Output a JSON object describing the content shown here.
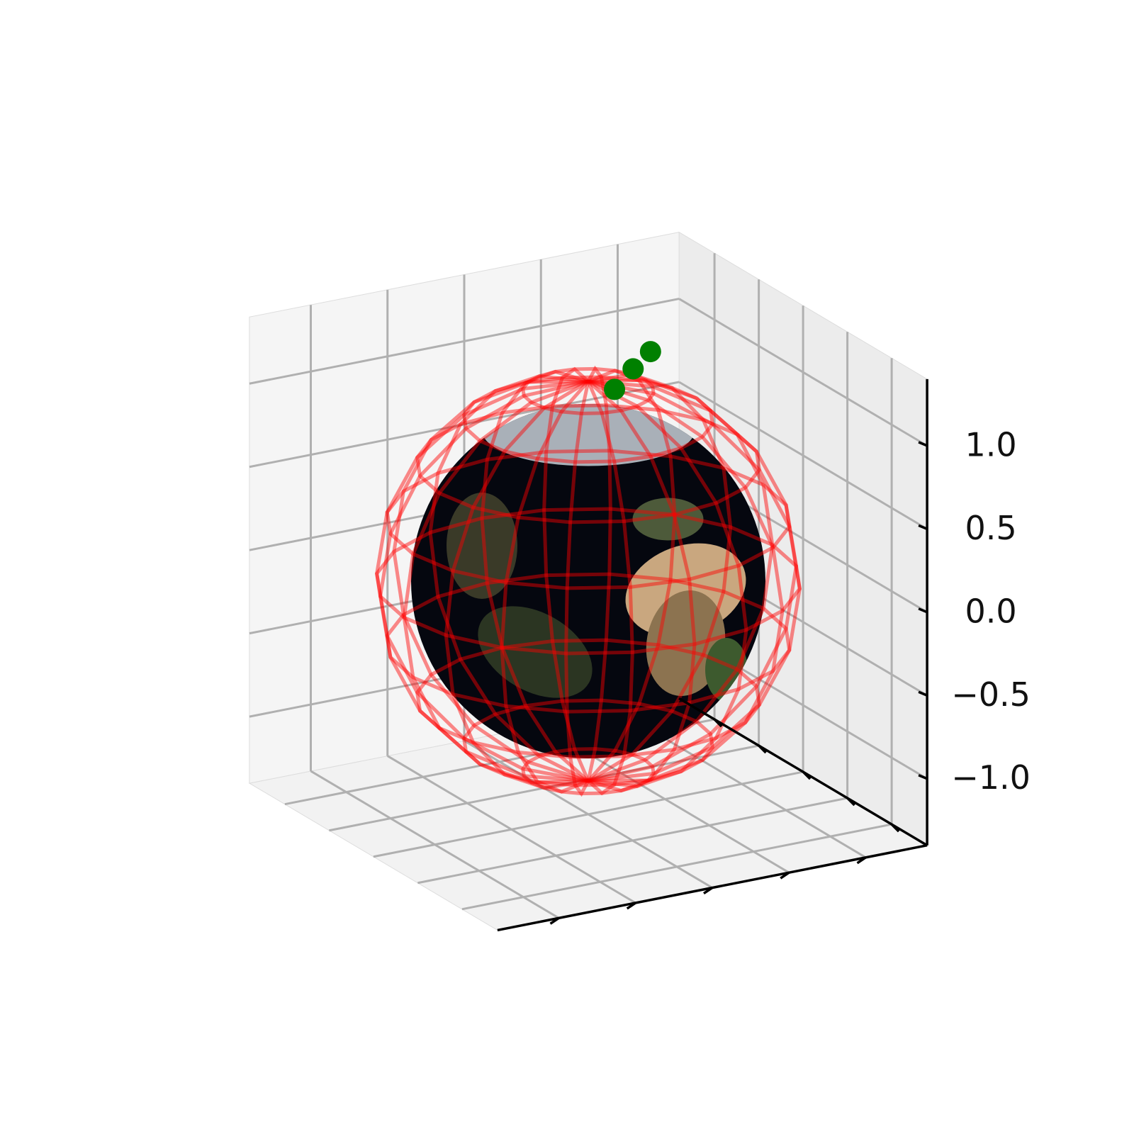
{
  "chart_data": {
    "type": "scatter3d",
    "series": [
      {
        "color": "#008000",
        "x": [
          0.55,
          0.35,
          0.2
        ],
        "y": [
          0.25,
          0.1,
          0.05
        ],
        "z": [
          1.2,
          1.18,
          1.1
        ]
      }
    ],
    "sphere_radius": 1,
    "wireframe_radius": 1.2,
    "wireframe_color": "#ff0000",
    "xlim": [
      -1.4,
      1.4
    ],
    "ylim": [
      -1.4,
      1.4
    ],
    "zlim": [
      -1.4,
      1.4
    ],
    "xticks": [
      -1,
      -0.5,
      0,
      0.5,
      1
    ],
    "yticks": [
      -1,
      -0.5,
      0,
      0.5,
      1
    ],
    "zticks": [
      {
        "value": -1,
        "label": "−1.0"
      },
      {
        "value": -0.5,
        "label": "−0.5"
      },
      {
        "value": 0,
        "label": "0.0"
      },
      {
        "value": 0.5,
        "label": "0.5"
      },
      {
        "value": 1,
        "label": "1.0"
      }
    ],
    "grid": true
  }
}
